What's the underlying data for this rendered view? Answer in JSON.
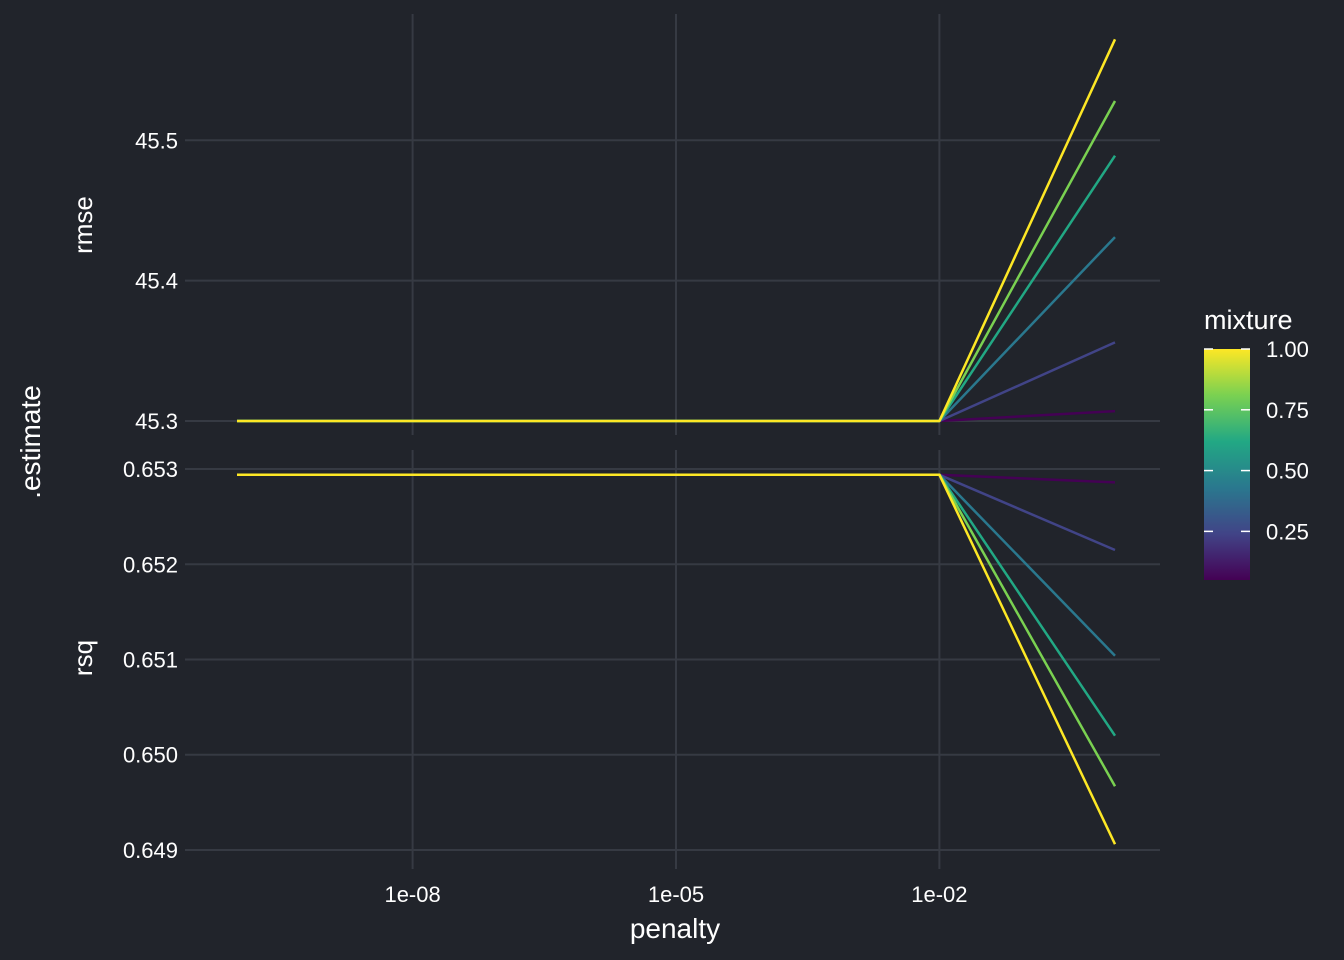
{
  "chart_data": {
    "type": "line",
    "xlabel": "penalty",
    "ylabel": ".estimate",
    "x_scale": "log10",
    "xlim": [
      1e-10,
      1
    ],
    "x_ticks": [
      1e-08,
      1e-05,
      0.01
    ],
    "x_tick_labels": [
      "1e-08",
      "1e-05",
      "1e-02"
    ],
    "x": [
      1e-10,
      0.01,
      1
    ],
    "legend": {
      "title": "mixture",
      "placement": "right",
      "type": "colorbar",
      "range": [
        0.05,
        1.0
      ],
      "ticks": [
        1.0,
        0.75,
        0.5,
        0.25
      ],
      "tick_labels": [
        "1.00",
        "0.75",
        "0.50",
        "0.25"
      ]
    },
    "panels": [
      {
        "strip": "rmse",
        "ylim": [
          45.29,
          45.59
        ],
        "y_ticks": [
          45.3,
          45.4,
          45.5
        ],
        "y_tick_labels": [
          "45.3",
          "45.4",
          "45.5"
        ],
        "series": [
          {
            "mixture": 0.05,
            "color": "#440154",
            "values": [
              45.3,
              45.3,
              45.307
            ]
          },
          {
            "mixture": 0.2,
            "color": "#414487",
            "values": [
              45.3,
              45.3,
              45.356
            ]
          },
          {
            "mixture": 0.4,
            "color": "#2a788e",
            "values": [
              45.3,
              45.3,
              45.431
            ]
          },
          {
            "mixture": 0.6,
            "color": "#22a884",
            "values": [
              45.3,
              45.3,
              45.489
            ]
          },
          {
            "mixture": 0.8,
            "color": "#7ad151",
            "values": [
              45.3,
              45.3,
              45.528
            ]
          },
          {
            "mixture": 1.0,
            "color": "#fde725",
            "values": [
              45.3,
              45.3,
              45.572
            ]
          }
        ]
      },
      {
        "strip": "rsq",
        "ylim": [
          0.6488,
          0.6532
        ],
        "y_ticks": [
          0.649,
          0.65,
          0.651,
          0.652,
          0.653
        ],
        "y_tick_labels": [
          "0.649",
          "0.650",
          "0.651",
          "0.652",
          "0.653"
        ],
        "series": [
          {
            "mixture": 0.05,
            "color": "#440154",
            "values": [
              0.65294,
              0.65294,
              0.65286
            ]
          },
          {
            "mixture": 0.2,
            "color": "#414487",
            "values": [
              0.65294,
              0.65294,
              0.65215
            ]
          },
          {
            "mixture": 0.4,
            "color": "#2a788e",
            "values": [
              0.65294,
              0.65294,
              0.65104
            ]
          },
          {
            "mixture": 0.6,
            "color": "#22a884",
            "values": [
              0.65294,
              0.65294,
              0.6502
            ]
          },
          {
            "mixture": 0.8,
            "color": "#7ad151",
            "values": [
              0.65294,
              0.65294,
              0.64967
            ]
          },
          {
            "mixture": 1.0,
            "color": "#fde725",
            "values": [
              0.65294,
              0.65294,
              0.64906
            ]
          }
        ]
      }
    ]
  }
}
